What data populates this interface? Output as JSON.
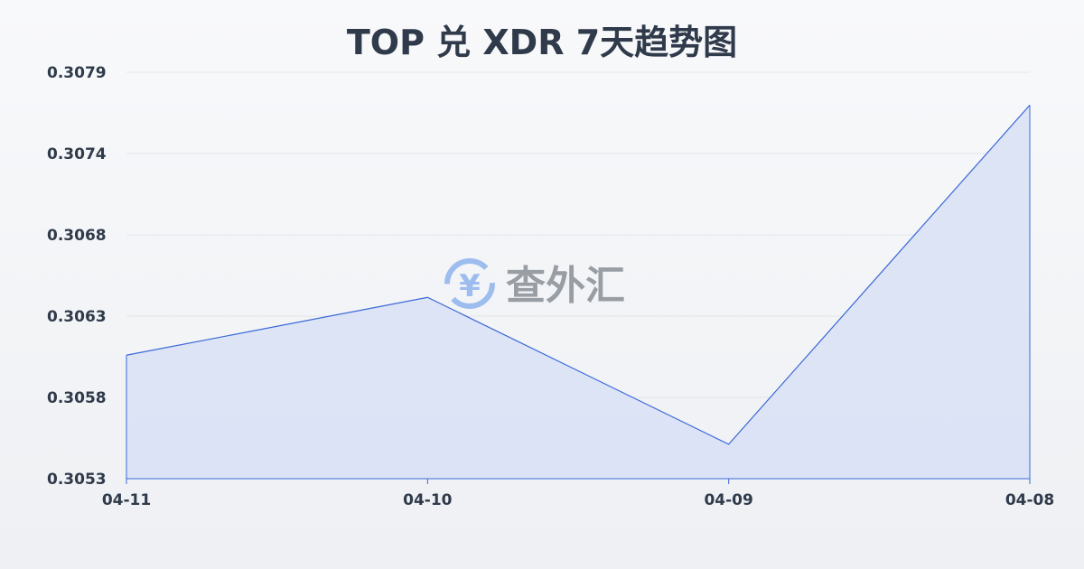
{
  "chart_data": {
    "type": "area",
    "title": "TOP 兑 XDR 7天趋势图",
    "xlabel": "",
    "ylabel": "",
    "categories": [
      "04-11",
      "04-10",
      "04-09",
      "04-08"
    ],
    "series": [
      {
        "values": [
          0.30609,
          0.30646,
          0.30552,
          0.30769
        ]
      }
    ],
    "yticks": [
      "0.3053",
      "0.3058",
      "0.3063",
      "0.3068",
      "0.3074",
      "0.3079"
    ],
    "ylim": [
      0.3053,
      0.3079
    ],
    "grid": true,
    "colors": {
      "line": "#3a68d8",
      "fill": "#d8e1f6",
      "grid": "#e3e6ea",
      "text": "#2f3a4a"
    }
  },
  "watermark": {
    "text": "查外汇",
    "icon": "yen-exchange-icon"
  }
}
